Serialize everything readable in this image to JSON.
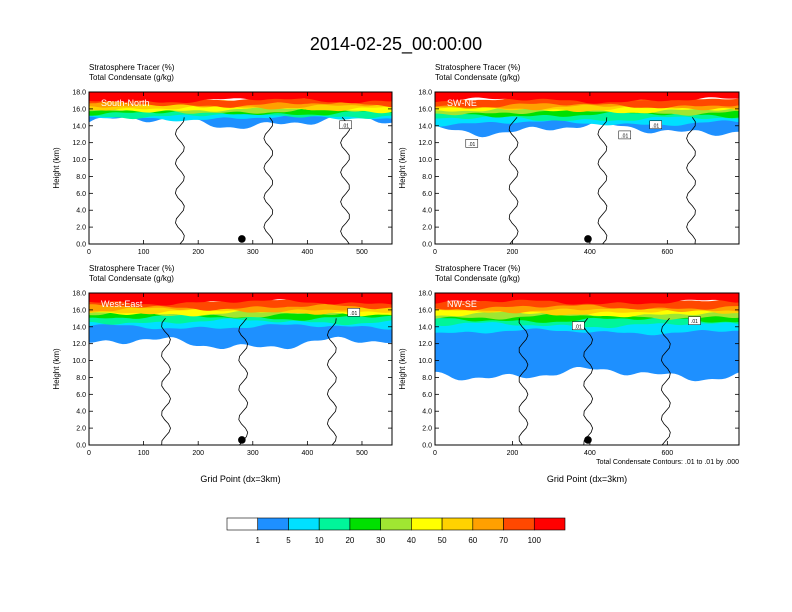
{
  "figure": {
    "title": "2014-02-25_00:00:00",
    "contour_note": "Total Condensate Contours: .01 to .01 by .000"
  },
  "chart_data": [
    {
      "type": "heatmap",
      "id": "p1",
      "header_line1": "Stratosphere Tracer   (%)",
      "header_line2": "Total Condensate   (g/kg)",
      "panel_label": "South-North",
      "ylabel": "Height (km)",
      "xlabel": "",
      "xlim": [
        0,
        555
      ],
      "ylim": [
        0,
        18
      ],
      "xticks": [
        0,
        100,
        200,
        300,
        400,
        500
      ],
      "yticks": [
        0,
        2,
        4,
        6,
        8,
        10,
        12,
        14,
        16,
        18
      ],
      "marker_x": 280,
      "contour_labels": [
        {
          "x": 470,
          "y": 14.0,
          "text": ".01"
        }
      ],
      "layers": [
        {
          "level": 1,
          "bottom": 14.4,
          "top": 15.6,
          "color": "#1e90ff"
        },
        {
          "level": 5,
          "bottom": 14.9,
          "top": 15.8,
          "color": "#00e0ff"
        },
        {
          "level": 10,
          "bottom": 15.2,
          "top": 16.0,
          "color": "#00f59a"
        },
        {
          "level": 20,
          "bottom": 15.5,
          "top": 16.2,
          "color": "#00e000"
        },
        {
          "level": 30,
          "bottom": 15.7,
          "top": 16.4,
          "color": "#a0e632"
        },
        {
          "level": 40,
          "bottom": 15.9,
          "top": 16.6,
          "color": "#ffff00"
        },
        {
          "level": 50,
          "bottom": 16.1,
          "top": 16.8,
          "color": "#ffd200"
        },
        {
          "level": 60,
          "bottom": 16.3,
          "top": 17.0,
          "color": "#ffa000"
        },
        {
          "level": 70,
          "bottom": 16.5,
          "top": 17.2,
          "color": "#ff4800"
        },
        {
          "level": 100,
          "bottom": 17.0,
          "top": 18.0,
          "color": "#ff0000"
        }
      ]
    },
    {
      "type": "heatmap",
      "id": "p2",
      "header_line1": "Stratosphere Tracer   (%)",
      "header_line2": "Total Condensate   (g/kg)",
      "panel_label": "SW-NE",
      "ylabel": "Height (km)",
      "xlabel": "",
      "xlim": [
        0,
        785
      ],
      "ylim": [
        0,
        18
      ],
      "xticks": [
        0,
        200,
        400,
        600
      ],
      "yticks": [
        0,
        2,
        4,
        6,
        8,
        10,
        12,
        14,
        16,
        18
      ],
      "marker_x": 395,
      "contour_labels": [
        {
          "x": 95,
          "y": 11.8,
          "text": ".01"
        },
        {
          "x": 490,
          "y": 12.8,
          "text": ".01"
        },
        {
          "x": 570,
          "y": 14.0,
          "text": ".01"
        }
      ],
      "layers": [
        {
          "level": 1,
          "bottom": 13.6,
          "top": 15.4,
          "color": "#1e90ff"
        },
        {
          "level": 5,
          "bottom": 14.3,
          "top": 15.7,
          "color": "#00e0ff"
        },
        {
          "level": 10,
          "bottom": 14.8,
          "top": 16.0,
          "color": "#00f59a"
        },
        {
          "level": 20,
          "bottom": 15.3,
          "top": 16.2,
          "color": "#00e000"
        },
        {
          "level": 30,
          "bottom": 15.6,
          "top": 16.4,
          "color": "#a0e632"
        },
        {
          "level": 40,
          "bottom": 15.8,
          "top": 16.6,
          "color": "#ffff00"
        },
        {
          "level": 50,
          "bottom": 16.0,
          "top": 16.8,
          "color": "#ffd200"
        },
        {
          "level": 60,
          "bottom": 16.2,
          "top": 17.0,
          "color": "#ffa000"
        },
        {
          "level": 70,
          "bottom": 16.4,
          "top": 17.2,
          "color": "#ff4800"
        },
        {
          "level": 100,
          "bottom": 17.0,
          "top": 18.0,
          "color": "#ff0000"
        }
      ]
    },
    {
      "type": "heatmap",
      "id": "p3",
      "header_line1": "Stratosphere Tracer   (%)",
      "header_line2": "Total Condensate   (g/kg)",
      "panel_label": "West-East",
      "ylabel": "Height (km)",
      "xlabel": "Grid Point (dx=3km)",
      "xlim": [
        0,
        555
      ],
      "ylim": [
        0,
        18
      ],
      "xticks": [
        0,
        100,
        200,
        300,
        400,
        500
      ],
      "yticks": [
        0,
        2,
        4,
        6,
        8,
        10,
        12,
        14,
        16,
        18
      ],
      "marker_x": 280,
      "contour_labels": [
        {
          "x": 485,
          "y": 15.6,
          "text": ".01"
        }
      ],
      "layers": [
        {
          "level": 1,
          "bottom": 12.0,
          "top": 15.2,
          "color": "#1e90ff"
        },
        {
          "level": 5,
          "bottom": 14.0,
          "top": 15.6,
          "color": "#00e0ff"
        },
        {
          "level": 10,
          "bottom": 14.6,
          "top": 15.9,
          "color": "#00f59a"
        },
        {
          "level": 20,
          "bottom": 15.1,
          "top": 16.1,
          "color": "#00e000"
        },
        {
          "level": 30,
          "bottom": 15.4,
          "top": 16.3,
          "color": "#a0e632"
        },
        {
          "level": 40,
          "bottom": 15.6,
          "top": 16.5,
          "color": "#ffff00"
        },
        {
          "level": 50,
          "bottom": 15.8,
          "top": 16.7,
          "color": "#ffd200"
        },
        {
          "level": 60,
          "bottom": 16.0,
          "top": 16.9,
          "color": "#ffa000"
        },
        {
          "level": 70,
          "bottom": 16.3,
          "top": 17.2,
          "color": "#ff4800"
        },
        {
          "level": 100,
          "bottom": 16.9,
          "top": 18.0,
          "color": "#ff0000"
        }
      ]
    },
    {
      "type": "heatmap",
      "id": "p4",
      "header_line1": "Stratosphere Tracer   (%)",
      "header_line2": "Total Condensate   (g/kg)",
      "panel_label": "NW-SE",
      "ylabel": "Height (km)",
      "xlabel": "Grid Point (dx=3km)",
      "xlim": [
        0,
        785
      ],
      "ylim": [
        0,
        18
      ],
      "xticks": [
        0,
        200,
        400,
        600
      ],
      "yticks": [
        0,
        2,
        4,
        6,
        8,
        10,
        12,
        14,
        16,
        18
      ],
      "marker_x": 395,
      "contour_labels": [
        {
          "x": 370,
          "y": 14.0,
          "text": ".01"
        },
        {
          "x": 670,
          "y": 14.6,
          "text": ".01"
        }
      ],
      "layers": [
        {
          "level": 1,
          "bottom": 8.4,
          "top": 15.0,
          "color": "#1e90ff"
        },
        {
          "level": 5,
          "bottom": 13.4,
          "top": 15.5,
          "color": "#00e0ff"
        },
        {
          "level": 10,
          "bottom": 14.2,
          "top": 15.8,
          "color": "#00f59a"
        },
        {
          "level": 20,
          "bottom": 14.8,
          "top": 16.1,
          "color": "#00e000"
        },
        {
          "level": 30,
          "bottom": 15.2,
          "top": 16.3,
          "color": "#a0e632"
        },
        {
          "level": 40,
          "bottom": 15.5,
          "top": 16.5,
          "color": "#ffff00"
        },
        {
          "level": 50,
          "bottom": 15.7,
          "top": 16.7,
          "color": "#ffd200"
        },
        {
          "level": 60,
          "bottom": 16.0,
          "top": 16.9,
          "color": "#ffa000"
        },
        {
          "level": 70,
          "bottom": 16.3,
          "top": 17.2,
          "color": "#ff4800"
        },
        {
          "level": 100,
          "bottom": 16.9,
          "top": 18.0,
          "color": "#ff0000"
        }
      ]
    }
  ],
  "colorbar": {
    "colors": [
      "#ffffff",
      "#1e90ff",
      "#00e0ff",
      "#00f59a",
      "#00e000",
      "#a0e632",
      "#ffff00",
      "#ffd200",
      "#ffa000",
      "#ff4800",
      "#ff0000"
    ],
    "labels": [
      "1",
      "5",
      "10",
      "20",
      "30",
      "40",
      "50",
      "60",
      "70",
      "100"
    ]
  }
}
